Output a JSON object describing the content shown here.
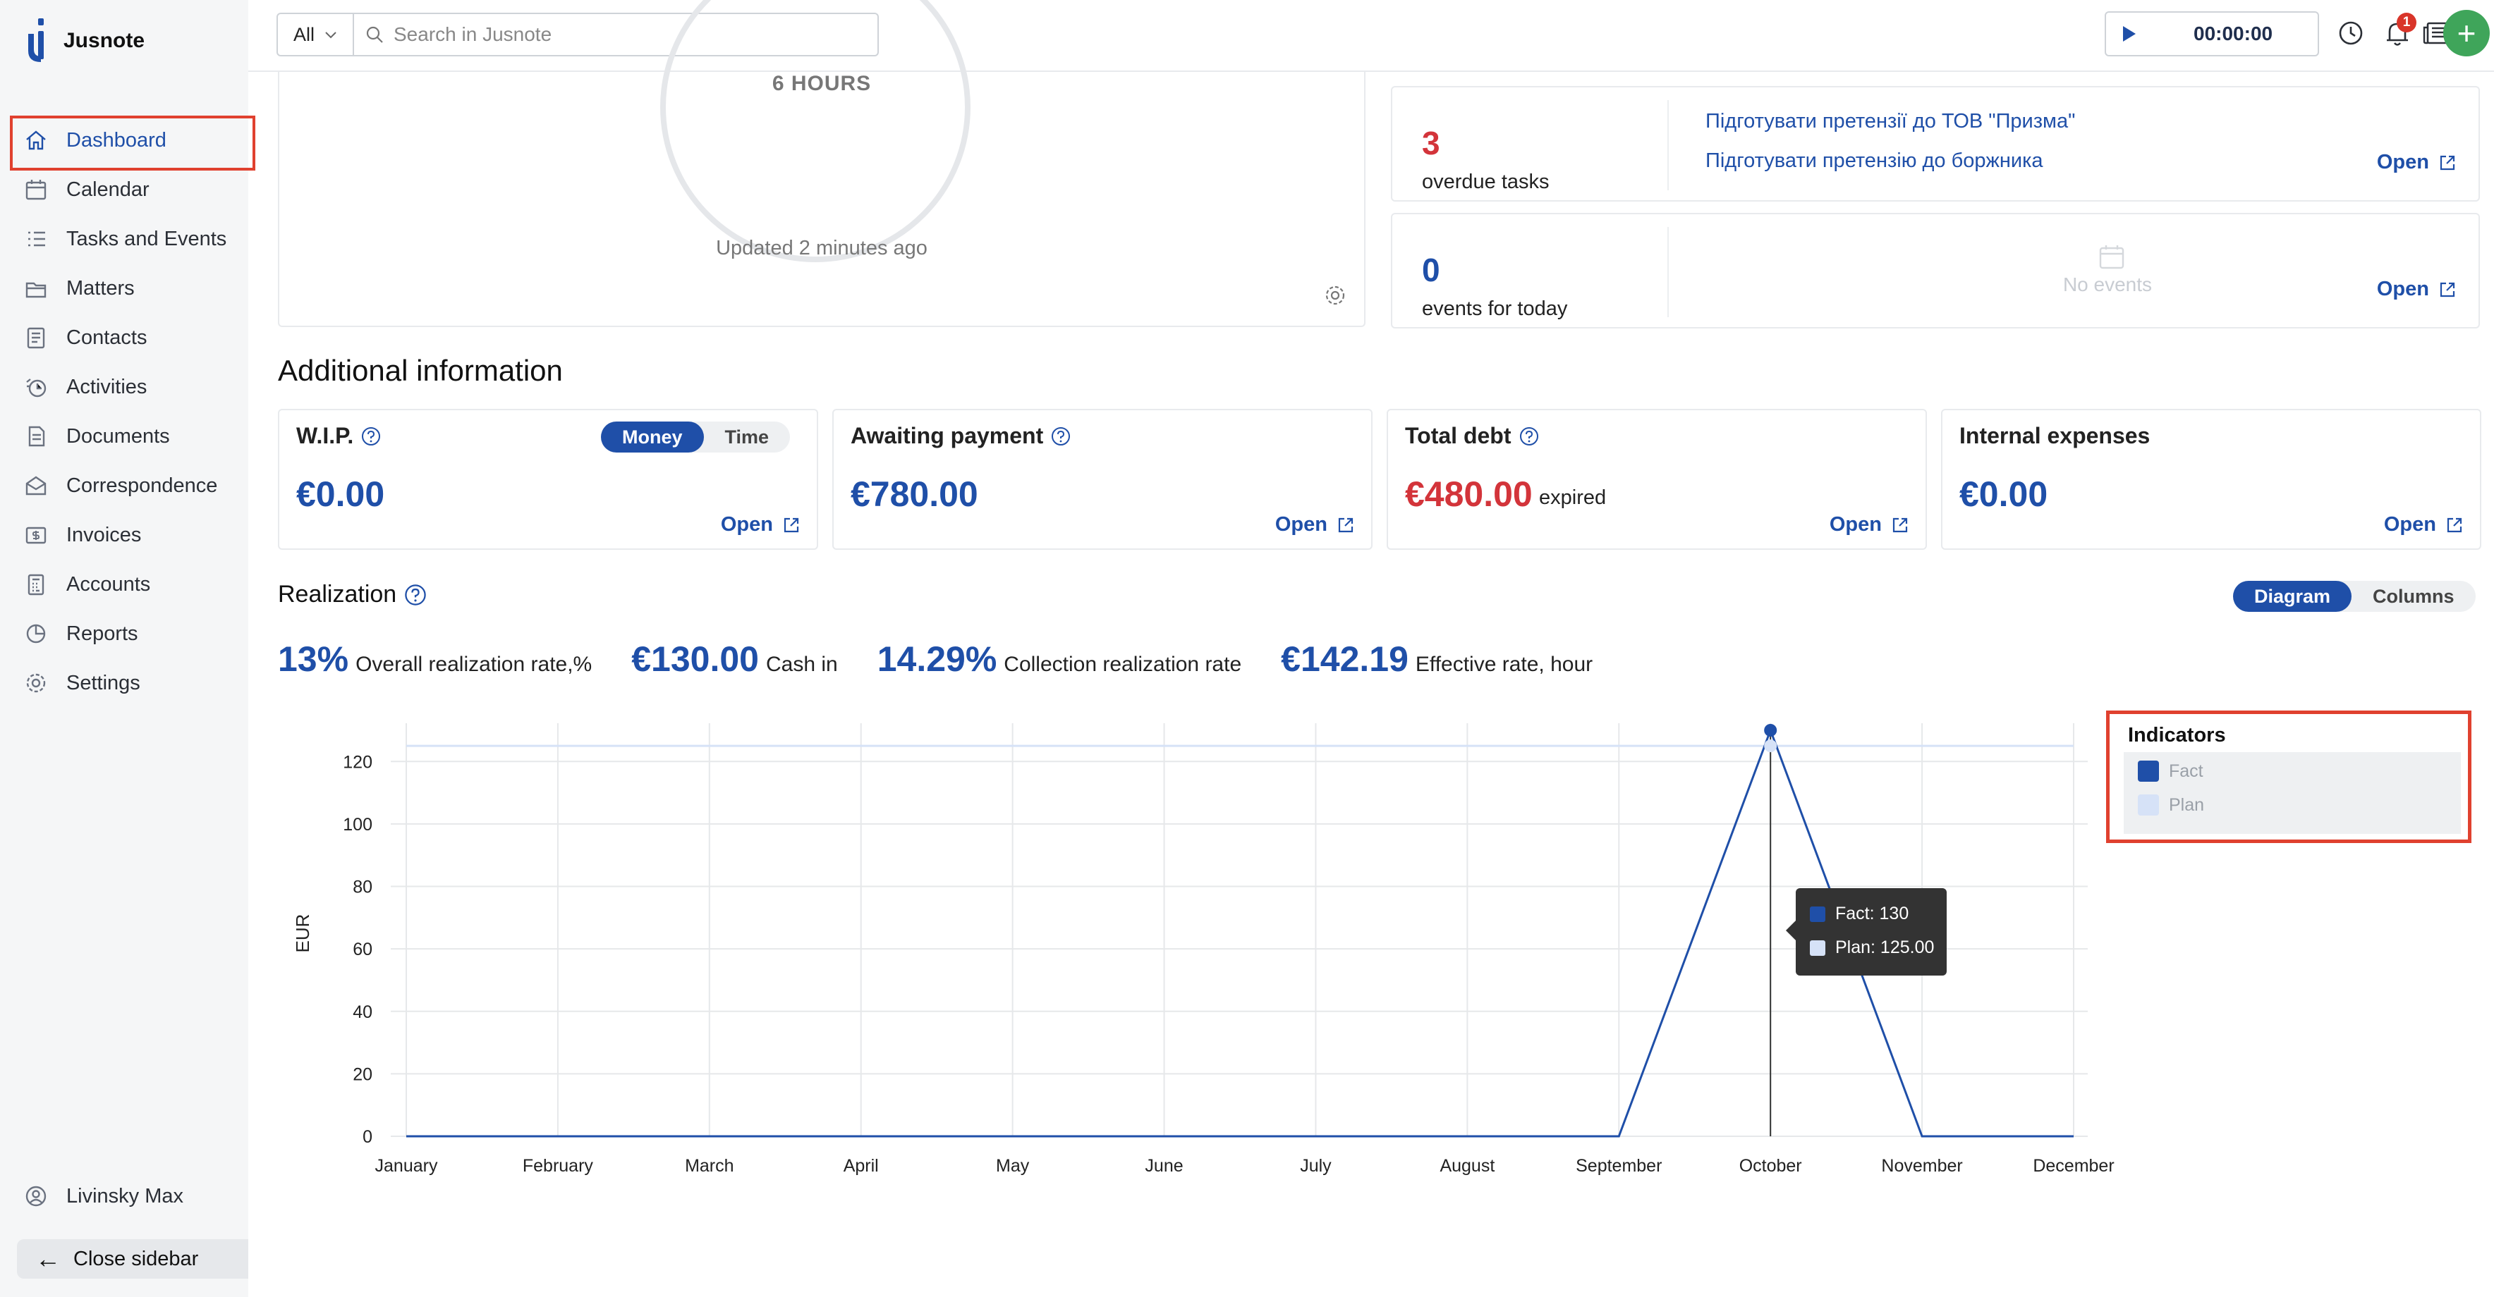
{
  "app": {
    "name": "Jusnote"
  },
  "sidebar": {
    "items": [
      {
        "label": "Dashboard",
        "icon": "home-icon",
        "active": true
      },
      {
        "label": "Calendar",
        "icon": "calendar-icon"
      },
      {
        "label": "Tasks and Events",
        "icon": "tasks-icon"
      },
      {
        "label": "Matters",
        "icon": "matters-icon"
      },
      {
        "label": "Contacts",
        "icon": "contacts-icon"
      },
      {
        "label": "Activities",
        "icon": "activities-icon"
      },
      {
        "label": "Documents",
        "icon": "documents-icon"
      },
      {
        "label": "Correspondence",
        "icon": "correspondence-icon"
      },
      {
        "label": "Invoices",
        "icon": "invoices-icon"
      },
      {
        "label": "Accounts",
        "icon": "accounts-icon"
      },
      {
        "label": "Reports",
        "icon": "reports-icon"
      },
      {
        "label": "Settings",
        "icon": "settings-icon"
      }
    ],
    "user": "Livinsky Max",
    "close_label": "Close sidebar"
  },
  "topbar": {
    "scope": "All",
    "search_placeholder": "Search in Jusnote",
    "timer": "00:00:00",
    "notifications_count": "1"
  },
  "hours_card": {
    "hours_label": "6 HOURS",
    "updated": "Updated 2 minutes ago"
  },
  "overdue": {
    "count": "3",
    "label": "overdue tasks",
    "tasks": [
      "Підготувати претензії до ТОВ \"Призма\"",
      "Підготувати претензію до боржника"
    ],
    "open": "Open"
  },
  "events": {
    "count": "0",
    "label": "events for today",
    "empty": "No events",
    "open": "Open"
  },
  "additional": {
    "title": "Additional information",
    "wip": {
      "title": "W.I.P.",
      "value": "€0.00",
      "toggle": [
        "Money",
        "Time"
      ],
      "open": "Open"
    },
    "awaiting": {
      "title": "Awaiting payment",
      "value": "€780.00",
      "open": "Open"
    },
    "debt": {
      "title": "Total debt",
      "value": "€480.00",
      "note": "expired",
      "open": "Open"
    },
    "expenses": {
      "title": "Internal expenses",
      "value": "€0.00",
      "open": "Open"
    }
  },
  "realization": {
    "title": "Realization",
    "view_toggle": [
      "Diagram",
      "Columns"
    ],
    "kpis": [
      {
        "value": "13%",
        "label": "Overall realization rate,%"
      },
      {
        "value": "€130.00",
        "label": "Cash in"
      },
      {
        "value": "14.29%",
        "label": "Collection realization rate"
      },
      {
        "value": "€142.19",
        "label": "Effective rate, hour"
      }
    ],
    "legend_title": "Indicators",
    "tooltip": {
      "fact": "Fact: 130",
      "plan": "Plan: 125.00"
    }
  },
  "colors": {
    "accent": "#1f4fa8",
    "fact": "#1f4fa8",
    "plan": "#d6e2f7",
    "danger": "#d3343a",
    "highlight": "#e0412f"
  },
  "chart_data": {
    "type": "line",
    "categories": [
      "January",
      "February",
      "March",
      "April",
      "May",
      "June",
      "July",
      "August",
      "September",
      "October",
      "November",
      "December"
    ],
    "series": [
      {
        "name": "Fact",
        "values": [
          0,
          0,
          0,
          0,
          0,
          0,
          0,
          0,
          0,
          130,
          0,
          0
        ]
      },
      {
        "name": "Plan",
        "values": [
          125,
          125,
          125,
          125,
          125,
          125,
          125,
          125,
          125,
          125,
          125,
          125
        ]
      }
    ],
    "ylabel": "EUR",
    "ylim": [
      0,
      130
    ],
    "yticks": [
      0,
      20,
      40,
      60,
      80,
      100,
      120
    ],
    "grid": true,
    "legend": "right"
  }
}
